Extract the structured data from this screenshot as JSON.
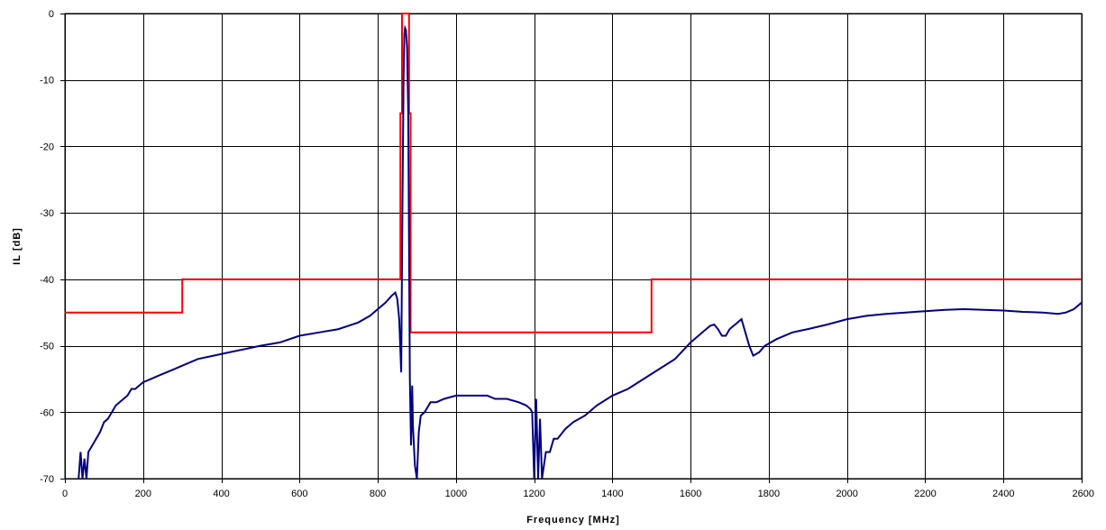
{
  "chart_data": {
    "type": "line",
    "title": "",
    "xlabel": "Frequency [MHz]",
    "ylabel": "IL [dB]",
    "xlim": [
      0,
      2600
    ],
    "ylim": [
      -70,
      0
    ],
    "xticks": [
      0,
      200,
      400,
      600,
      800,
      1000,
      1200,
      1400,
      1600,
      1800,
      2000,
      2200,
      2400,
      2600
    ],
    "yticks": [
      0,
      -10,
      -20,
      -30,
      -40,
      -50,
      -60,
      -70
    ],
    "grid": true,
    "legend": "none",
    "colors": {
      "grid": "#000000",
      "measurement": "#000080",
      "mask": "#ff0000"
    },
    "series": [
      {
        "x": [
          35,
          40,
          45,
          50,
          55,
          60,
          70,
          80,
          90,
          100,
          110,
          120,
          130,
          140,
          150,
          160,
          170,
          180,
          190,
          200,
          220,
          240,
          260,
          280,
          300,
          340,
          380,
          420,
          460,
          500,
          550,
          600,
          650,
          700,
          750,
          780,
          800,
          820,
          835,
          845,
          850,
          855,
          860,
          863,
          866,
          868,
          870,
          872,
          875,
          878,
          880,
          882,
          885,
          888,
          890,
          895,
          900,
          905,
          910,
          920,
          935,
          950,
          970,
          1000,
          1030,
          1060,
          1080,
          1100,
          1130,
          1160,
          1180,
          1190,
          1195,
          1200,
          1205,
          1210,
          1215,
          1220,
          1230,
          1240,
          1250,
          1260,
          1280,
          1300,
          1330,
          1360,
          1400,
          1440,
          1480,
          1520,
          1560,
          1600,
          1630,
          1650,
          1660,
          1670,
          1680,
          1690,
          1700,
          1720,
          1730,
          1740,
          1750,
          1760,
          1775,
          1790,
          1820,
          1860,
          1900,
          1950,
          2000,
          2050,
          2100,
          2150,
          2200,
          2250,
          2300,
          2350,
          2400,
          2450,
          2500,
          2540,
          2560,
          2580,
          2590,
          2600
        ],
        "y": [
          -70,
          -66,
          -70,
          -67,
          -70,
          -66,
          -65,
          -64,
          -63,
          -61.5,
          -61,
          -60,
          -59,
          -58.5,
          -58,
          -57.5,
          -56.5,
          -56.5,
          -56,
          -55.5,
          -55,
          -54.5,
          -54,
          -53.5,
          -53,
          -52,
          -51.5,
          -51,
          -50.5,
          -50,
          -49.5,
          -48.5,
          -48,
          -47.5,
          -46.5,
          -45.5,
          -44.5,
          -43.5,
          -42.5,
          -42,
          -43,
          -46,
          -54,
          -30,
          -10,
          -3,
          -2.2,
          -2.5,
          -5,
          -15,
          -35,
          -55,
          -65,
          -56,
          -62,
          -68,
          -70,
          -63,
          -60.5,
          -60,
          -58.5,
          -58.5,
          -58,
          -57.5,
          -57.5,
          -57.5,
          -57.5,
          -58,
          -58,
          -58.5,
          -59,
          -59.5,
          -60,
          -70,
          -58,
          -70,
          -61,
          -70,
          -66,
          -66,
          -64,
          -64,
          -62.5,
          -61.5,
          -60.5,
          -59,
          -57.5,
          -56.5,
          -55,
          -53.5,
          -52,
          -49.5,
          -48,
          -47,
          -46.8,
          -47.5,
          -48.5,
          -48.5,
          -47.5,
          -46.5,
          -46,
          -48,
          -50,
          -51.5,
          -51,
          -50,
          -49,
          -48,
          -47.5,
          -46.8,
          -46,
          -45.5,
          -45.2,
          -45,
          -44.8,
          -44.6,
          -44.5,
          -44.6,
          -44.7,
          -44.9,
          -45,
          -45.2,
          -45,
          -44.5,
          -44,
          -43.5
        ]
      },
      {
        "x": [
          0,
          300,
          300,
          858,
          858,
          862,
          862,
          872,
          872,
          880,
          880,
          884,
          884,
          1500,
          1500,
          2600
        ],
        "y": [
          -45,
          -45,
          -40,
          -40,
          -15,
          -15,
          0,
          0,
          0,
          0,
          -15,
          -15,
          -48,
          -48,
          -40,
          -40
        ]
      }
    ]
  }
}
